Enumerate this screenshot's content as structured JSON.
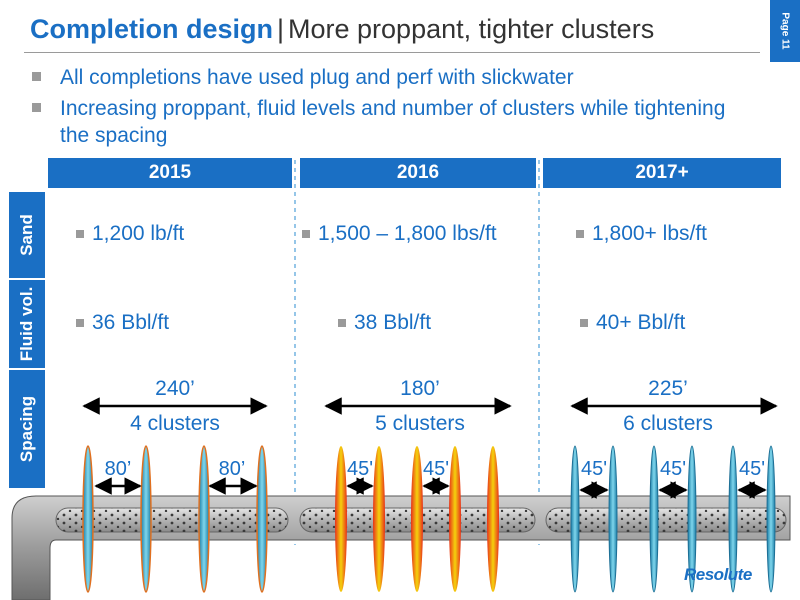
{
  "header": {
    "title_strong": "Completion design",
    "title_sep": "|",
    "title_rest": "More proppant, tighter clusters",
    "page_label": "Page 11"
  },
  "bullets": [
    "All completions have used plug and perf with slickwater",
    "Increasing proppant, fluid levels and number of clusters while tightening the spacing"
  ],
  "columns": [
    {
      "year": "2015",
      "sand": "1,200 lb/ft",
      "fluid": "36 Bbl/ft",
      "spacing": "240’",
      "clusters": "4 clusters",
      "gap_label": "80’"
    },
    {
      "year": "2016",
      "sand": "1,500 – 1,800 lbs/ft",
      "fluid": "38 Bbl/ft",
      "spacing": "180’",
      "clusters": "5 clusters",
      "gap_label": "45'"
    },
    {
      "year": "2017+",
      "sand": "1,800+ lbs/ft",
      "fluid": "40+ Bbl/ft",
      "spacing": "225’",
      "clusters": "6 clusters",
      "gap_label": "45'"
    }
  ],
  "row_labels": {
    "sand": "Sand",
    "fluid": "Fluid vol.",
    "spacing": "Spacing"
  },
  "logo_text": "Resolute",
  "colors": {
    "accent": "#1a6fc4",
    "frac_teal": "#4fb8d6",
    "frac_hot": "#e8301a",
    "frac_warm": "#f4c20d",
    "pipe": "#9b9b9b"
  }
}
